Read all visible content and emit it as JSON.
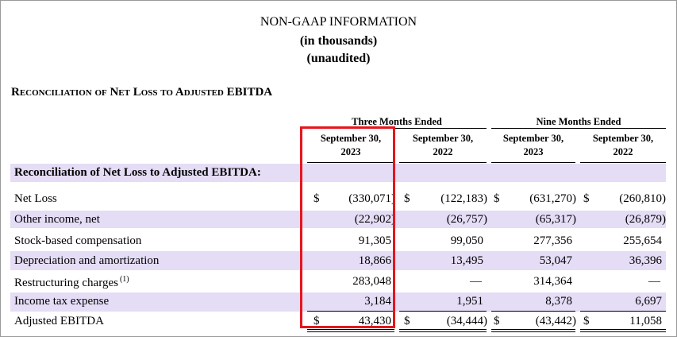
{
  "header": {
    "title": "NON-GAAP INFORMATION",
    "subtitle1": "(in thousands)",
    "subtitle2": "(unaudited)"
  },
  "section_title": "Reconciliation of Net Loss to Adjusted EBITDA",
  "table": {
    "groups": [
      "Three Months Ended",
      "Nine Months Ended"
    ],
    "columns": [
      {
        "line1": "September 30,",
        "line2": "2023"
      },
      {
        "line1": "September 30,",
        "line2": "2022"
      },
      {
        "line1": "September 30,",
        "line2": "2023"
      },
      {
        "line1": "September 30,",
        "line2": "2022"
      }
    ],
    "subheader": "Reconciliation of Net Loss to Adjusted EBITDA:",
    "rows": [
      {
        "label": "Net Loss",
        "note": "",
        "values": [
          "(330,071)",
          "(122,183)",
          "(631,270)",
          "(260,810)"
        ]
      },
      {
        "label": "Other income, net",
        "note": "",
        "values": [
          "(22,902)",
          "(26,757)",
          "(65,317)",
          "(26,879)"
        ]
      },
      {
        "label": "Stock-based compensation",
        "note": "",
        "values": [
          "91,305",
          "99,050",
          "277,356",
          "255,654"
        ]
      },
      {
        "label": "Depreciation and amortization",
        "note": "",
        "values": [
          "18,866",
          "13,495",
          "53,047",
          "36,396"
        ]
      },
      {
        "label": "Restructuring charges",
        "note": "(1)",
        "values": [
          "283,048",
          "—",
          "314,364",
          "—"
        ]
      },
      {
        "label": "Income tax expense",
        "note": "",
        "values": [
          "3,184",
          "1,951",
          "8,378",
          "6,697"
        ]
      },
      {
        "label": "Adjusted EBITDA",
        "note": "",
        "values": [
          "43,430",
          "(34,444)",
          "(43,442)",
          "11,058"
        ]
      }
    ],
    "currency_symbol": "$"
  },
  "colors": {
    "band": "#e5dcf6",
    "highlight": "#e5161d"
  }
}
